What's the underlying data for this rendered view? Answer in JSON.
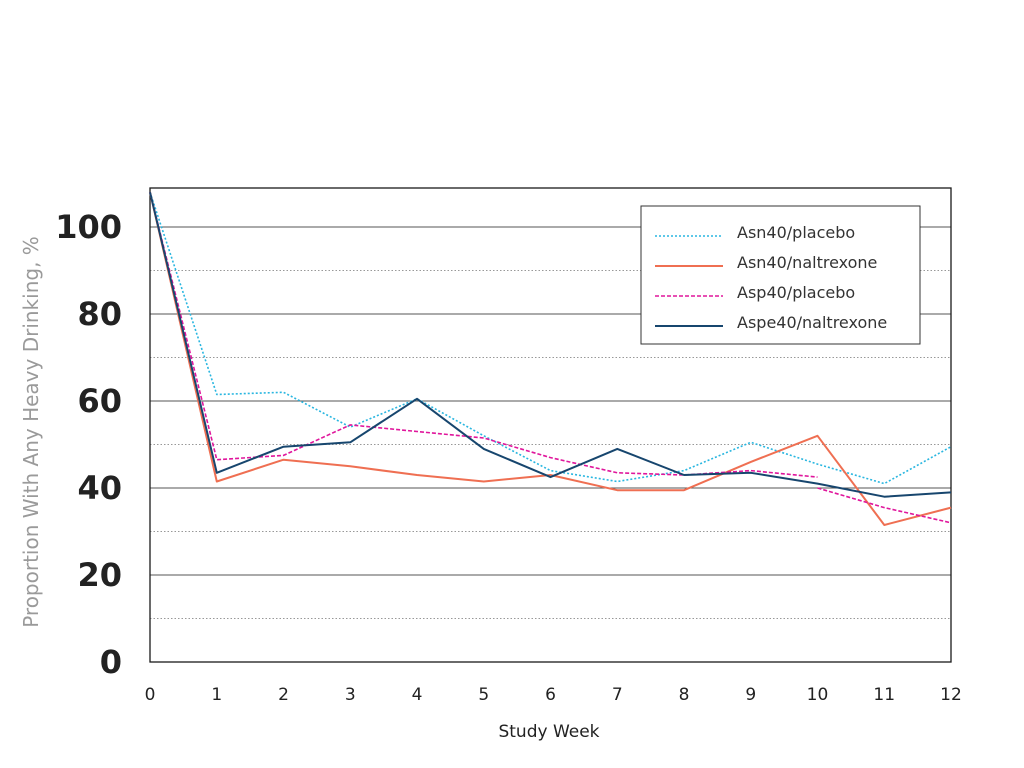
{
  "chart_data": {
    "type": "line",
    "title": "",
    "xlabel": "Study Week",
    "ylabel": "Proportion With Any Heavy Drinking, %",
    "x": [
      0,
      1,
      2,
      3,
      4,
      5,
      6,
      7,
      8,
      9,
      10,
      11,
      12
    ],
    "xticks": [
      "0",
      "1",
      "2",
      "3",
      "4",
      "5",
      "6",
      "7",
      "8",
      "9",
      "10",
      "11",
      "12"
    ],
    "yticks": [
      "0",
      "20",
      "40",
      "60",
      "80",
      "100"
    ],
    "ylim": [
      0,
      108
    ],
    "xlim": [
      0,
      12
    ],
    "grid": "horizontal",
    "legend_position": "top-right",
    "series": [
      {
        "name": "Asn40/placebo",
        "color": "#29b6e0",
        "dash": "dotted",
        "values": [
          108,
          61.5,
          62,
          54,
          60.5,
          52,
          44,
          41.5,
          44,
          50.5,
          45.5,
          41,
          49.5
        ]
      },
      {
        "name": "Asn40/naltrexone",
        "color": "#ef6f52",
        "dash": "solid",
        "values": [
          108,
          41.5,
          46.5,
          45,
          43,
          41.5,
          43,
          39.5,
          39.5,
          46,
          52,
          31.5,
          35.5
        ]
      },
      {
        "name": "Asp40/placebo",
        "color": "#e0169c",
        "dash": "dashed",
        "values": [
          108,
          46.5,
          47.5,
          54.5,
          53,
          51.5,
          47,
          43.5,
          43,
          44,
          42.5,
          null,
          null
        ]
      },
      {
        "name": "Aspe40/naltrexone",
        "color": "#17466e",
        "dash": "solid",
        "values": [
          108,
          43.5,
          49.5,
          50.5,
          60.5,
          49,
          42.5,
          49,
          43,
          43.5,
          41,
          38,
          39
        ]
      }
    ],
    "extra_series": [
      {
        "color": "#e0169c",
        "dash": "dashed",
        "points": [
          [
            10,
            40
          ],
          [
            11,
            35.5
          ],
          [
            12,
            32
          ]
        ]
      }
    ]
  }
}
